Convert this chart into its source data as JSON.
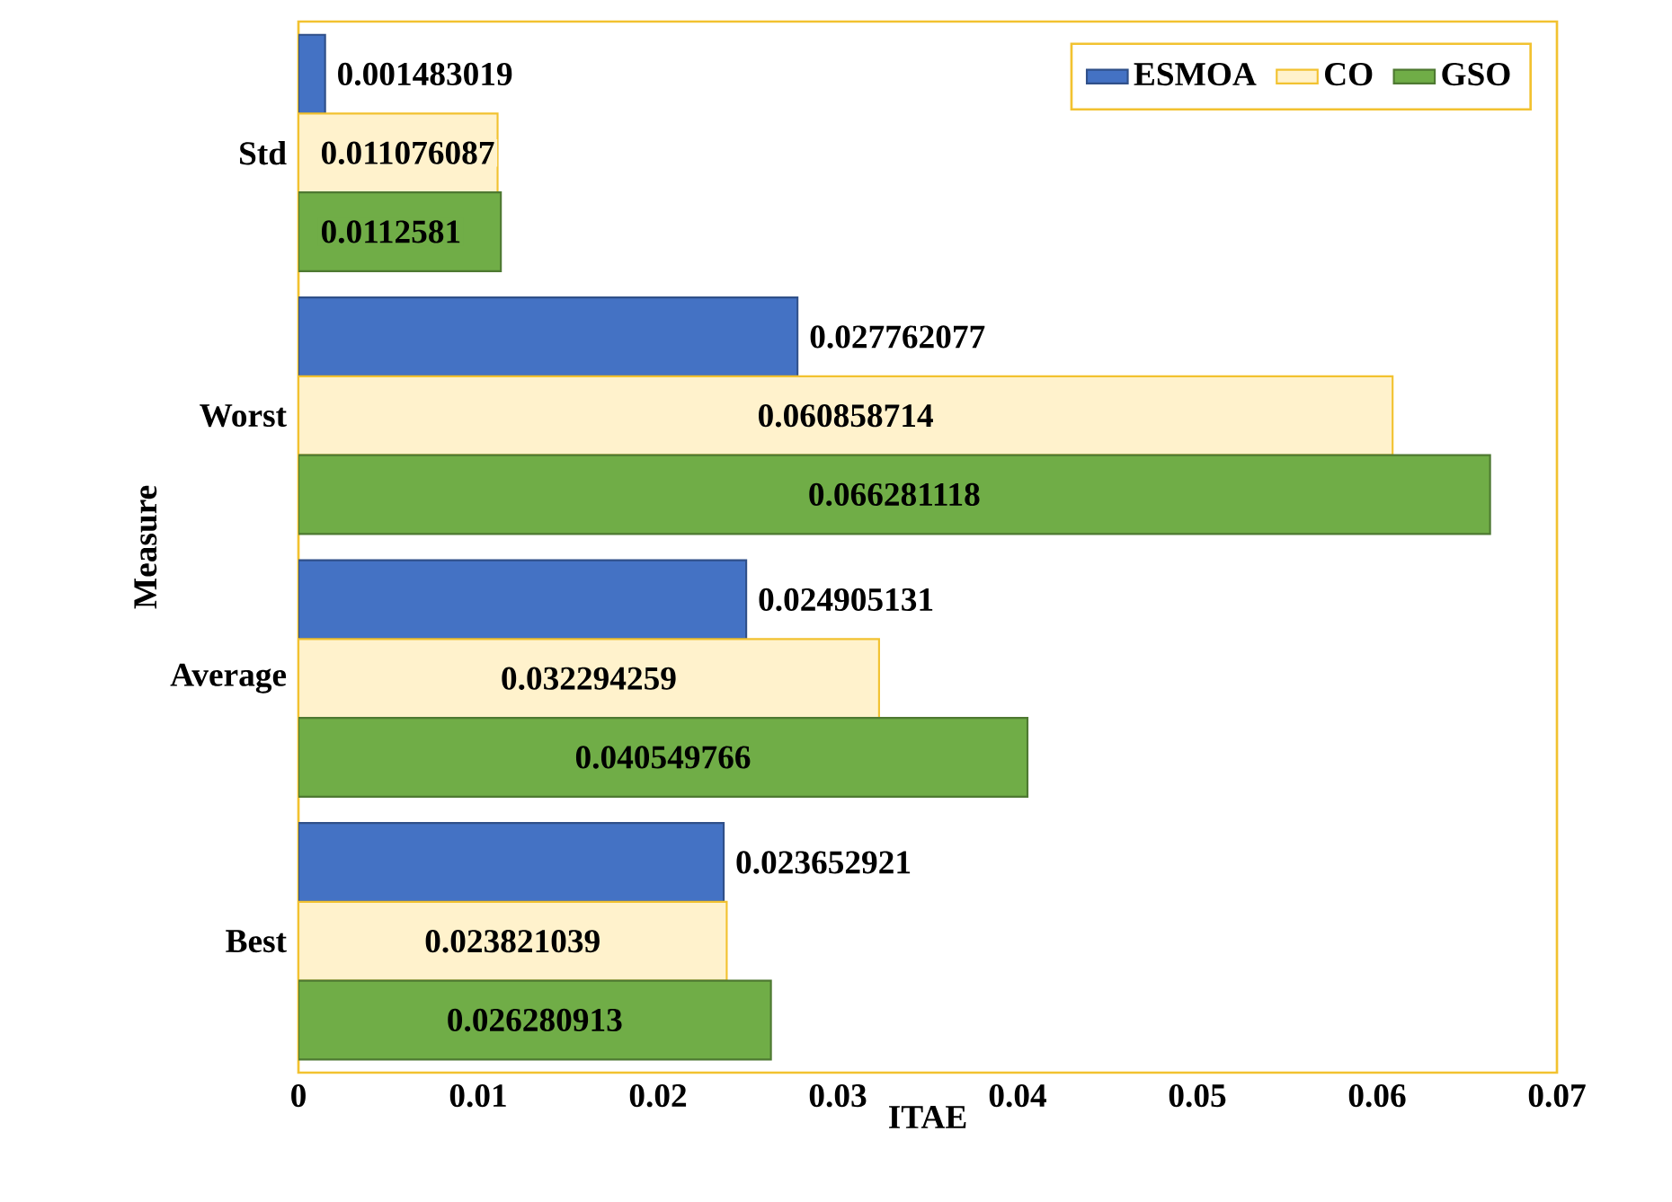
{
  "chart_data": {
    "type": "bar",
    "orientation": "horizontal",
    "xlabel": "ITAE",
    "ylabel": "Measure",
    "categories": [
      "Std",
      "Worst",
      "Average",
      "Best"
    ],
    "series": [
      {
        "name": "ESMOA",
        "color": "#4472c4",
        "values": [
          0.001483019,
          0.027762077,
          0.024905131,
          0.023652921
        ]
      },
      {
        "name": "CO",
        "color": "#fff2cc",
        "values": [
          0.011076087,
          0.060858714,
          0.032294259,
          0.023821039
        ]
      },
      {
        "name": "GSO",
        "color": "#70ad47",
        "values": [
          0.0112581,
          0.066281118,
          0.040549766,
          0.026280913
        ]
      }
    ],
    "xlim": [
      0,
      0.07
    ],
    "xticks": [
      0,
      0.01,
      0.02,
      0.03,
      0.04,
      0.05,
      0.06,
      0.07
    ],
    "data_labels": true,
    "grid": false,
    "legend": "top right"
  }
}
